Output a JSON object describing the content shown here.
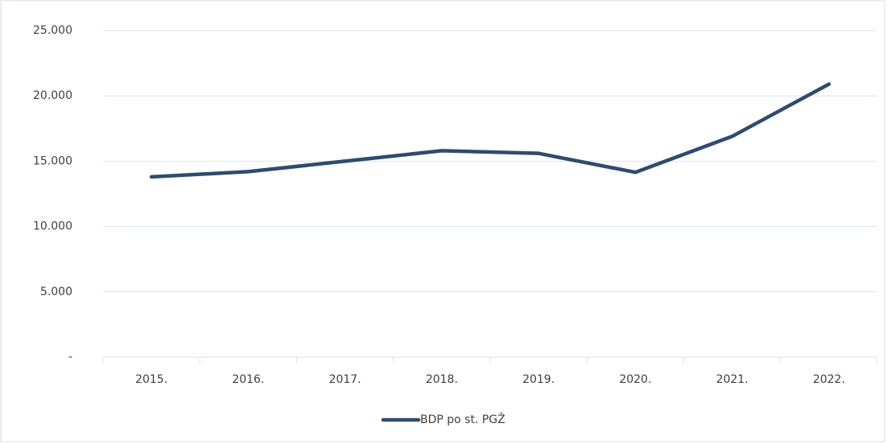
{
  "chart_data": {
    "type": "line",
    "categories": [
      "2015.",
      "2016.",
      "2017.",
      "2018.",
      "2019.",
      "2020.",
      "2021.",
      "2022."
    ],
    "series": [
      {
        "name": "BDP po st. PGŽ",
        "color": "#2f4b6e",
        "values": [
          13800,
          14200,
          15000,
          15800,
          15600,
          14150,
          16900,
          20900
        ]
      }
    ],
    "ylim": [
      0,
      25000
    ],
    "yticks": [
      {
        "value": 0,
        "label": "-"
      },
      {
        "value": 5000,
        "label": "5.000"
      },
      {
        "value": 10000,
        "label": "10.000"
      },
      {
        "value": 15000,
        "label": "15.000"
      },
      {
        "value": 20000,
        "label": "20.000"
      },
      {
        "value": 25000,
        "label": "25.000"
      }
    ],
    "grid": true,
    "legend": "bottom"
  }
}
